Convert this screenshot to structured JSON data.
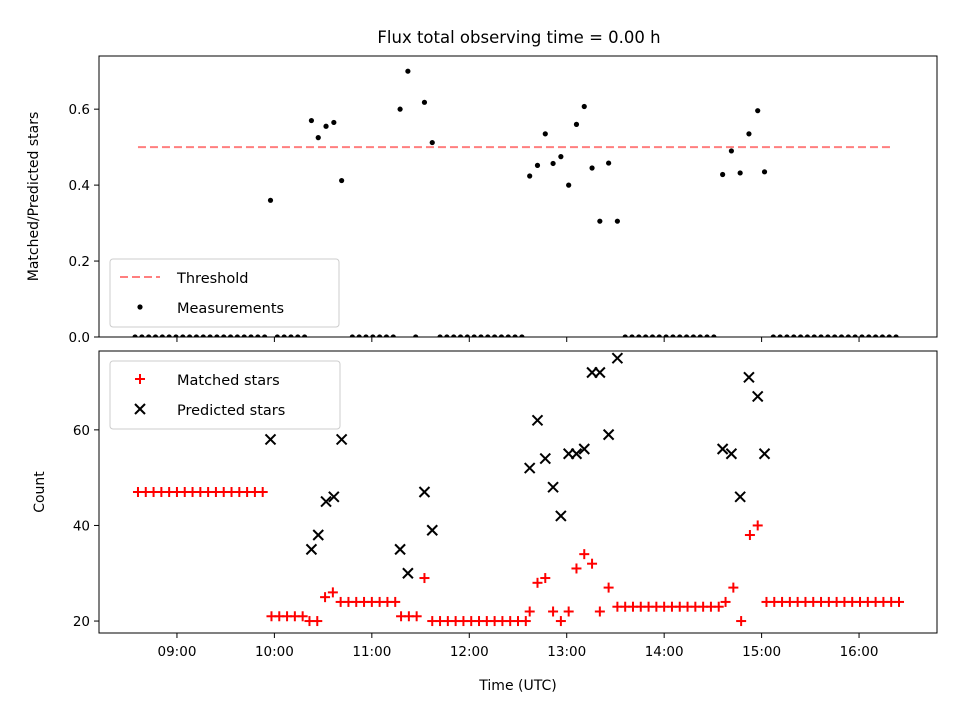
{
  "figure": {
    "title": "Flux total observing time = 0.00 h"
  },
  "chart_data": [
    {
      "type": "scatter",
      "title": "Flux total observing time = 0.00 h",
      "xlabel": "",
      "ylabel": "Matched/Predicted stars",
      "xlim": [
        8.2,
        16.8
      ],
      "ylim": [
        0,
        0.74
      ],
      "xticks": [
        {
          "value": 9,
          "label": "09:00"
        },
        {
          "value": 10,
          "label": "10:00"
        },
        {
          "value": 11,
          "label": "11:00"
        },
        {
          "value": 12,
          "label": "12:00"
        },
        {
          "value": 13,
          "label": "13:00"
        },
        {
          "value": 14,
          "label": "14:00"
        },
        {
          "value": 15,
          "label": "15:00"
        },
        {
          "value": 16,
          "label": "16:00"
        }
      ],
      "yticks": [
        {
          "value": 0.0,
          "label": "0.0"
        },
        {
          "value": 0.2,
          "label": "0.2"
        },
        {
          "value": 0.4,
          "label": "0.4"
        },
        {
          "value": 0.6,
          "label": "0.6"
        }
      ],
      "ticks_labeled": false,
      "legend": {
        "placement": "lower-left",
        "entries": [
          "Threshold",
          "Measurements"
        ]
      },
      "series": [
        {
          "name": "Threshold",
          "kind": "dashed-line",
          "color": "#ff7f7f",
          "points": [
            [
              8.6,
              0.5
            ],
            [
              16.33,
              0.5
            ]
          ]
        },
        {
          "name": "Measurements",
          "kind": "dot",
          "color": "#000000",
          "points": [
            [
              8.57,
              0
            ],
            [
              8.64,
              0
            ],
            [
              8.71,
              0
            ],
            [
              8.78,
              0
            ],
            [
              8.85,
              0
            ],
            [
              8.92,
              0
            ],
            [
              8.99,
              0
            ],
            [
              9.06,
              0
            ],
            [
              9.13,
              0
            ],
            [
              9.2,
              0
            ],
            [
              9.27,
              0
            ],
            [
              9.34,
              0
            ],
            [
              9.41,
              0
            ],
            [
              9.48,
              0
            ],
            [
              9.55,
              0
            ],
            [
              9.62,
              0
            ],
            [
              9.69,
              0
            ],
            [
              9.76,
              0
            ],
            [
              9.83,
              0
            ],
            [
              9.9,
              0
            ],
            [
              9.96,
              0.36
            ],
            [
              10.03,
              0
            ],
            [
              10.1,
              0
            ],
            [
              10.17,
              0
            ],
            [
              10.24,
              0
            ],
            [
              10.31,
              0
            ],
            [
              10.38,
              0.57
            ],
            [
              10.45,
              0.525
            ],
            [
              10.53,
              0.555
            ],
            [
              10.61,
              0.565
            ],
            [
              10.69,
              0.412
            ],
            [
              10.8,
              0
            ],
            [
              10.87,
              0
            ],
            [
              10.94,
              0
            ],
            [
              11.01,
              0
            ],
            [
              11.08,
              0
            ],
            [
              11.15,
              0
            ],
            [
              11.22,
              0
            ],
            [
              11.29,
              0.6
            ],
            [
              11.37,
              0.7
            ],
            [
              11.45,
              0
            ],
            [
              11.54,
              0.618
            ],
            [
              11.62,
              0.512
            ],
            [
              11.7,
              0
            ],
            [
              11.77,
              0
            ],
            [
              11.84,
              0
            ],
            [
              11.91,
              0
            ],
            [
              11.98,
              0
            ],
            [
              12.05,
              0
            ],
            [
              12.12,
              0
            ],
            [
              12.19,
              0
            ],
            [
              12.26,
              0
            ],
            [
              12.33,
              0
            ],
            [
              12.4,
              0
            ],
            [
              12.47,
              0
            ],
            [
              12.54,
              0
            ],
            [
              12.62,
              0.424
            ],
            [
              12.7,
              0.452
            ],
            [
              12.78,
              0.535
            ],
            [
              12.86,
              0.457
            ],
            [
              12.94,
              0.475
            ],
            [
              13.02,
              0.4
            ],
            [
              13.1,
              0.56
            ],
            [
              13.18,
              0.607
            ],
            [
              13.26,
              0.445
            ],
            [
              13.34,
              0.305
            ],
            [
              13.43,
              0.458
            ],
            [
              13.52,
              0.305
            ],
            [
              13.6,
              0
            ],
            [
              13.67,
              0
            ],
            [
              13.74,
              0
            ],
            [
              13.81,
              0
            ],
            [
              13.88,
              0
            ],
            [
              13.95,
              0
            ],
            [
              14.02,
              0
            ],
            [
              14.09,
              0
            ],
            [
              14.16,
              0
            ],
            [
              14.23,
              0
            ],
            [
              14.3,
              0
            ],
            [
              14.37,
              0
            ],
            [
              14.44,
              0
            ],
            [
              14.51,
              0
            ],
            [
              14.6,
              0.428
            ],
            [
              14.69,
              0.49
            ],
            [
              14.78,
              0.432
            ],
            [
              14.87,
              0.535
            ],
            [
              14.96,
              0.596
            ],
            [
              15.03,
              0.435
            ],
            [
              15.12,
              0
            ],
            [
              15.19,
              0
            ],
            [
              15.26,
              0
            ],
            [
              15.33,
              0
            ],
            [
              15.4,
              0
            ],
            [
              15.47,
              0
            ],
            [
              15.54,
              0
            ],
            [
              15.61,
              0
            ],
            [
              15.68,
              0
            ],
            [
              15.75,
              0
            ],
            [
              15.82,
              0
            ],
            [
              15.89,
              0
            ],
            [
              15.96,
              0
            ],
            [
              16.03,
              0
            ],
            [
              16.1,
              0
            ],
            [
              16.17,
              0
            ],
            [
              16.24,
              0
            ],
            [
              16.31,
              0
            ],
            [
              16.38,
              0
            ]
          ]
        }
      ]
    },
    {
      "type": "scatter",
      "title": "",
      "xlabel": "Time (UTC)",
      "ylabel": "Count",
      "xlim": [
        8.2,
        16.8
      ],
      "ylim": [
        17.5,
        76.5
      ],
      "xticks": [
        {
          "value": 9,
          "label": "09:00"
        },
        {
          "value": 10,
          "label": "10:00"
        },
        {
          "value": 11,
          "label": "11:00"
        },
        {
          "value": 12,
          "label": "12:00"
        },
        {
          "value": 13,
          "label": "13:00"
        },
        {
          "value": 14,
          "label": "14:00"
        },
        {
          "value": 15,
          "label": "15:00"
        },
        {
          "value": 16,
          "label": "16:00"
        }
      ],
      "yticks": [
        {
          "value": 20,
          "label": "20"
        },
        {
          "value": 40,
          "label": "40"
        },
        {
          "value": 60,
          "label": "60"
        }
      ],
      "ticks_labeled": true,
      "legend": {
        "placement": "upper-left",
        "entries": [
          "Matched stars",
          "Predicted stars"
        ]
      },
      "series": [
        {
          "name": "Matched stars",
          "kind": "plus",
          "color": "#ff0000",
          "points": [
            [
              8.6,
              47
            ],
            [
              8.68,
              47
            ],
            [
              8.76,
              47
            ],
            [
              8.84,
              47
            ],
            [
              8.92,
              47
            ],
            [
              9.0,
              47
            ],
            [
              9.08,
              47
            ],
            [
              9.16,
              47
            ],
            [
              9.24,
              47
            ],
            [
              9.32,
              47
            ],
            [
              9.4,
              47
            ],
            [
              9.48,
              47
            ],
            [
              9.56,
              47
            ],
            [
              9.64,
              47
            ],
            [
              9.72,
              47
            ],
            [
              9.8,
              47
            ],
            [
              9.88,
              47
            ],
            [
              9.97,
              21
            ],
            [
              10.05,
              21
            ],
            [
              10.13,
              21
            ],
            [
              10.21,
              21
            ],
            [
              10.29,
              21
            ],
            [
              10.36,
              20
            ],
            [
              10.44,
              20
            ],
            [
              10.52,
              25
            ],
            [
              10.6,
              26
            ],
            [
              10.68,
              24
            ],
            [
              10.76,
              24
            ],
            [
              10.84,
              24
            ],
            [
              10.92,
              24
            ],
            [
              11.0,
              24
            ],
            [
              11.08,
              24
            ],
            [
              11.16,
              24
            ],
            [
              11.24,
              24
            ],
            [
              11.3,
              21
            ],
            [
              11.38,
              21
            ],
            [
              11.46,
              21
            ],
            [
              11.54,
              29
            ],
            [
              11.62,
              20
            ],
            [
              11.7,
              20
            ],
            [
              11.78,
              20
            ],
            [
              11.86,
              20
            ],
            [
              11.94,
              20
            ],
            [
              12.02,
              20
            ],
            [
              12.1,
              20
            ],
            [
              12.18,
              20
            ],
            [
              12.26,
              20
            ],
            [
              12.34,
              20
            ],
            [
              12.42,
              20
            ],
            [
              12.5,
              20
            ],
            [
              12.58,
              20
            ],
            [
              12.62,
              22
            ],
            [
              12.7,
              28
            ],
            [
              12.78,
              29
            ],
            [
              12.86,
              22
            ],
            [
              12.94,
              20
            ],
            [
              13.02,
              22
            ],
            [
              13.1,
              31
            ],
            [
              13.18,
              34
            ],
            [
              13.26,
              32
            ],
            [
              13.34,
              22
            ],
            [
              13.43,
              27
            ],
            [
              13.52,
              23
            ],
            [
              13.6,
              23
            ],
            [
              13.68,
              23
            ],
            [
              13.76,
              23
            ],
            [
              13.84,
              23
            ],
            [
              13.92,
              23
            ],
            [
              14.0,
              23
            ],
            [
              14.08,
              23
            ],
            [
              14.16,
              23
            ],
            [
              14.24,
              23
            ],
            [
              14.32,
              23
            ],
            [
              14.4,
              23
            ],
            [
              14.48,
              23
            ],
            [
              14.56,
              23
            ],
            [
              14.63,
              24
            ],
            [
              14.71,
              27
            ],
            [
              14.79,
              20
            ],
            [
              14.88,
              38
            ],
            [
              14.96,
              40
            ],
            [
              15.05,
              24
            ],
            [
              15.13,
              24
            ],
            [
              15.21,
              24
            ],
            [
              15.29,
              24
            ],
            [
              15.37,
              24
            ],
            [
              15.45,
              24
            ],
            [
              15.53,
              24
            ],
            [
              15.61,
              24
            ],
            [
              15.69,
              24
            ],
            [
              15.77,
              24
            ],
            [
              15.85,
              24
            ],
            [
              15.93,
              24
            ],
            [
              16.01,
              24
            ],
            [
              16.09,
              24
            ],
            [
              16.17,
              24
            ],
            [
              16.25,
              24
            ],
            [
              16.33,
              24
            ],
            [
              16.41,
              24
            ]
          ]
        },
        {
          "name": "Predicted stars",
          "kind": "x",
          "color": "#000000",
          "points": [
            [
              9.96,
              58
            ],
            [
              10.38,
              35
            ],
            [
              10.45,
              38
            ],
            [
              10.53,
              45
            ],
            [
              10.61,
              46
            ],
            [
              10.69,
              58
            ],
            [
              11.29,
              35
            ],
            [
              11.37,
              30
            ],
            [
              11.54,
              47
            ],
            [
              11.62,
              39
            ],
            [
              12.62,
              52
            ],
            [
              12.7,
              62
            ],
            [
              12.78,
              54
            ],
            [
              12.86,
              48
            ],
            [
              12.94,
              42
            ],
            [
              13.02,
              55
            ],
            [
              13.1,
              55
            ],
            [
              13.18,
              56
            ],
            [
              13.26,
              72
            ],
            [
              13.34,
              72
            ],
            [
              13.43,
              59
            ],
            [
              13.52,
              75
            ],
            [
              14.6,
              56
            ],
            [
              14.69,
              55
            ],
            [
              14.78,
              46
            ],
            [
              14.87,
              71
            ],
            [
              14.96,
              67
            ],
            [
              15.03,
              55
            ]
          ]
        }
      ]
    }
  ]
}
